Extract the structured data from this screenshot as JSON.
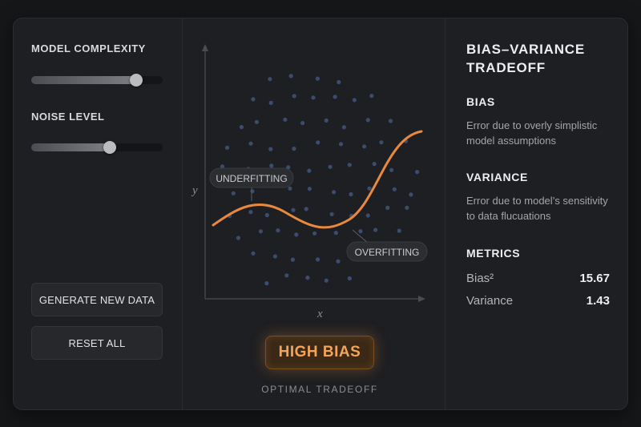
{
  "controls": {
    "model_complexity": {
      "label": "MODEL COMPLEXITY",
      "value": 0.8
    },
    "noise_level": {
      "label": "NOISE LEVEL",
      "value": 0.6
    },
    "buttons": {
      "generate": "GENERATE NEW DATA",
      "reset": "RESET ALL"
    }
  },
  "plot": {
    "x_label": "x",
    "y_label": "y",
    "annotations": {
      "underfitting": "UNDERFITTING",
      "overfitting": "OVERFITTING"
    },
    "status_badge": "HIGH BIAS",
    "caption": "OPTIMAL TRADEOFF",
    "colors": {
      "curve": "#e8893e",
      "points": "#3b4c6e",
      "axis": "#4a4c51"
    }
  },
  "info": {
    "title": "BIAS–VARIANCE TRADEOFF",
    "bias_heading": "BIAS",
    "bias_text": "Error due to overly simplistic model assumptions",
    "variance_heading": "VARIANCE",
    "variance_text": "Error due to model’s sensitivity to data flucuations",
    "metrics_heading": "METRICS",
    "metrics": [
      {
        "label": "Bias²",
        "value": "15.67"
      },
      {
        "label": "Variance",
        "value": "1.43"
      }
    ]
  }
}
